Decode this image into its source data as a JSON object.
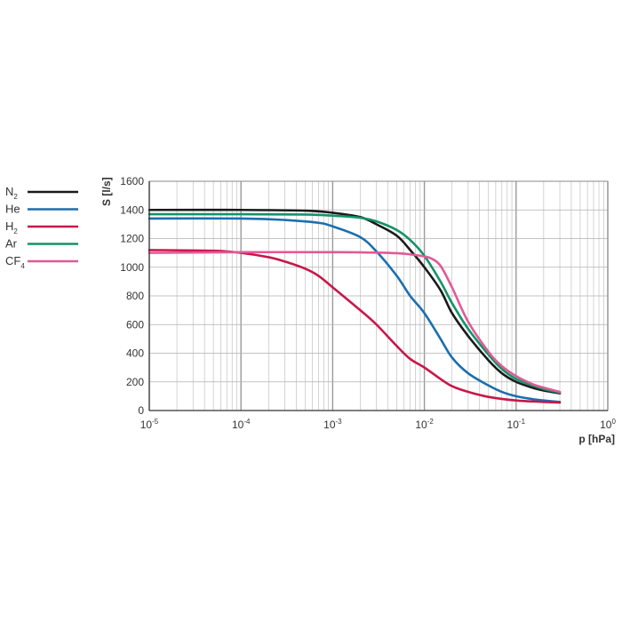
{
  "chart_data": {
    "type": "line",
    "title": "",
    "xlabel": "p [hPa]",
    "ylabel": "S [l/s]",
    "x_scale": "log",
    "xlim": [
      1e-05,
      1
    ],
    "ylim": [
      0,
      1600
    ],
    "grid": true,
    "legend_position": "left",
    "x_tick_labels": [
      {
        "base": "10",
        "exp": "-5"
      },
      {
        "base": "10",
        "exp": "-4"
      },
      {
        "base": "10",
        "exp": "-3"
      },
      {
        "base": "10",
        "exp": "-2"
      },
      {
        "base": "10",
        "exp": "-1"
      },
      {
        "base": "10",
        "exp": "0"
      }
    ],
    "y_ticks": [
      "0",
      "200",
      "400",
      "600",
      "800",
      "1000",
      "1200",
      "1400",
      "1600"
    ],
    "series": [
      {
        "name": "N",
        "sub": "2",
        "color": "#1a1a1a",
        "points": [
          [
            1e-05,
            1400
          ],
          [
            0.0001,
            1400
          ],
          [
            0.0005,
            1395
          ],
          [
            0.001,
            1380
          ],
          [
            0.002,
            1350
          ],
          [
            0.003,
            1300
          ],
          [
            0.005,
            1220
          ],
          [
            0.007,
            1120
          ],
          [
            0.01,
            1000
          ],
          [
            0.015,
            840
          ],
          [
            0.02,
            680
          ],
          [
            0.03,
            520
          ],
          [
            0.05,
            350
          ],
          [
            0.07,
            260
          ],
          [
            0.1,
            200
          ],
          [
            0.15,
            160
          ],
          [
            0.2,
            140
          ],
          [
            0.3,
            120
          ]
        ]
      },
      {
        "name": "He",
        "sub": "",
        "color": "#1b6fae",
        "points": [
          [
            1e-05,
            1340
          ],
          [
            0.0001,
            1340
          ],
          [
            0.0003,
            1330
          ],
          [
            0.0007,
            1310
          ],
          [
            0.001,
            1285
          ],
          [
            0.002,
            1210
          ],
          [
            0.003,
            1110
          ],
          [
            0.005,
            940
          ],
          [
            0.007,
            800
          ],
          [
            0.01,
            680
          ],
          [
            0.015,
            500
          ],
          [
            0.02,
            370
          ],
          [
            0.03,
            260
          ],
          [
            0.05,
            175
          ],
          [
            0.07,
            130
          ],
          [
            0.1,
            100
          ],
          [
            0.15,
            80
          ],
          [
            0.2,
            70
          ],
          [
            0.3,
            60
          ]
        ]
      },
      {
        "name": "H",
        "sub": "2",
        "color": "#c8174a",
        "points": [
          [
            1e-05,
            1120
          ],
          [
            5e-05,
            1115
          ],
          [
            0.0001,
            1100
          ],
          [
            0.0002,
            1070
          ],
          [
            0.0003,
            1040
          ],
          [
            0.0005,
            990
          ],
          [
            0.0007,
            940
          ],
          [
            0.001,
            860
          ],
          [
            0.002,
            700
          ],
          [
            0.003,
            600
          ],
          [
            0.005,
            450
          ],
          [
            0.007,
            360
          ],
          [
            0.01,
            300
          ],
          [
            0.015,
            220
          ],
          [
            0.02,
            170
          ],
          [
            0.03,
            130
          ],
          [
            0.05,
            95
          ],
          [
            0.1,
            70
          ],
          [
            0.2,
            60
          ],
          [
            0.3,
            55
          ]
        ]
      },
      {
        "name": "Ar",
        "sub": "",
        "color": "#12936a",
        "points": [
          [
            1e-05,
            1370
          ],
          [
            0.0001,
            1370
          ],
          [
            0.0005,
            1368
          ],
          [
            0.001,
            1360
          ],
          [
            0.002,
            1345
          ],
          [
            0.003,
            1320
          ],
          [
            0.005,
            1260
          ],
          [
            0.007,
            1190
          ],
          [
            0.01,
            1080
          ],
          [
            0.015,
            900
          ],
          [
            0.02,
            750
          ],
          [
            0.03,
            570
          ],
          [
            0.05,
            390
          ],
          [
            0.07,
            290
          ],
          [
            0.1,
            220
          ],
          [
            0.15,
            175
          ],
          [
            0.2,
            150
          ],
          [
            0.3,
            125
          ]
        ]
      },
      {
        "name": "CF",
        "sub": "4",
        "color": "#e05a97",
        "points": [
          [
            1e-05,
            1100
          ],
          [
            0.0001,
            1105
          ],
          [
            0.001,
            1105
          ],
          [
            0.003,
            1102
          ],
          [
            0.005,
            1098
          ],
          [
            0.007,
            1090
          ],
          [
            0.01,
            1075
          ],
          [
            0.012,
            1060
          ],
          [
            0.015,
            1010
          ],
          [
            0.02,
            860
          ],
          [
            0.03,
            620
          ],
          [
            0.05,
            410
          ],
          [
            0.07,
            310
          ],
          [
            0.1,
            240
          ],
          [
            0.15,
            185
          ],
          [
            0.2,
            160
          ],
          [
            0.3,
            130
          ]
        ]
      }
    ]
  }
}
